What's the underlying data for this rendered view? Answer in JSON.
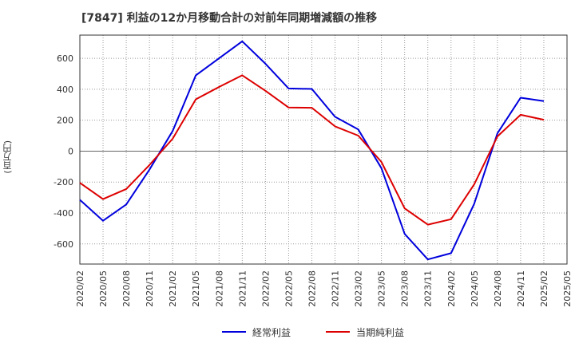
{
  "chart_data": {
    "type": "line",
    "title": "[7847]  利益の12か月移動合計の対前年同期増減額の推移",
    "ylabel": "(百万円)",
    "xlabel": "",
    "ylim": [
      -730,
      750
    ],
    "yticks": [
      -600,
      -400,
      -200,
      0,
      200,
      400,
      600
    ],
    "categories": [
      "2020/02",
      "2020/05",
      "2020/08",
      "2020/11",
      "2021/02",
      "2021/05",
      "2021/08",
      "2021/11",
      "2022/02",
      "2022/05",
      "2022/08",
      "2022/11",
      "2023/02",
      "2023/05",
      "2023/08",
      "2023/11",
      "2024/02",
      "2024/05",
      "2024/08",
      "2024/11",
      "2025/02",
      "2025/05"
    ],
    "series": [
      {
        "name": "経常利益",
        "color": "#0000dd",
        "values": [
          -315,
          -450,
          -345,
          -120,
          130,
          490,
          600,
          710,
          565,
          405,
          402,
          222,
          140,
          -110,
          -535,
          -700,
          -660,
          -340,
          115,
          345,
          323,
          null
        ]
      },
      {
        "name": "当期純利益",
        "color": "#dd0000",
        "values": [
          -205,
          -310,
          -245,
          -90,
          80,
          335,
          415,
          490,
          390,
          282,
          280,
          160,
          100,
          -70,
          -370,
          -475,
          -440,
          -215,
          95,
          235,
          203,
          null
        ]
      }
    ],
    "grid": true,
    "legend": "bottom-center"
  }
}
